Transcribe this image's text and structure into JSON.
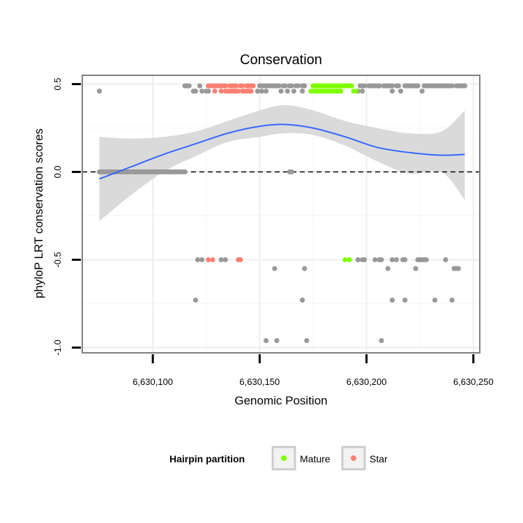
{
  "chart_data": {
    "type": "scatter",
    "title": "Conservation",
    "xlabel": "Genomic Position",
    "ylabel": "phyloP LRT conservation scores",
    "xlim": [
      6630067,
      6630253
    ],
    "ylim": [
      -1.03,
      0.55
    ],
    "x_ticks": [
      {
        "value": 6630100,
        "label": "6,630,100"
      },
      {
        "value": 6630150,
        "label": "6,630,150"
      },
      {
        "value": 6630200,
        "label": "6,630,200"
      },
      {
        "value": 6630250,
        "label": "6,630,250"
      }
    ],
    "y_ticks": [
      {
        "value": 0.5,
        "label": "0.5"
      },
      {
        "value": 0.0,
        "label": "0.0"
      },
      {
        "value": -0.5,
        "label": "-0.5"
      },
      {
        "value": -1.0,
        "label": "-1.0"
      }
    ],
    "grid": true,
    "reference_line": {
      "y": 0.0,
      "style": "dashed"
    },
    "colors": {
      "other": "#999999",
      "mature": "#7fff00",
      "star": "#fa8072",
      "smooth": "#3366ff",
      "ribbon": "#d3d3d3",
      "panel_border": "#7f7f7f"
    },
    "smooth_line": {
      "x": [
        6630075,
        6630090,
        6630105,
        6630120,
        6630135,
        6630150,
        6630162,
        6630175,
        6630190,
        6630205,
        6630220,
        6630235,
        6630246
      ],
      "y": [
        -0.04,
        0.03,
        0.1,
        0.16,
        0.22,
        0.26,
        0.27,
        0.25,
        0.2,
        0.14,
        0.11,
        0.095,
        0.1
      ],
      "lower": [
        -0.28,
        -0.13,
        0.0,
        0.09,
        0.17,
        0.2,
        0.22,
        0.21,
        0.15,
        0.06,
        -0.01,
        0.0,
        -0.16
      ],
      "upper": [
        0.2,
        0.19,
        0.2,
        0.23,
        0.29,
        0.35,
        0.38,
        0.35,
        0.29,
        0.25,
        0.22,
        0.23,
        0.35
      ]
    },
    "series": [
      {
        "name": "Other",
        "points": [
          [
            6630075,
            0.46
          ],
          [
            6630075,
            0.0
          ],
          [
            6630076,
            0.0
          ],
          [
            6630077,
            0.0
          ],
          [
            6630078,
            0.0
          ],
          [
            6630079,
            0.0
          ],
          [
            6630080,
            0.0
          ],
          [
            6630081,
            0.0
          ],
          [
            6630082,
            0.0
          ],
          [
            6630083,
            0.0
          ],
          [
            6630084,
            0.0
          ],
          [
            6630085,
            0.0
          ],
          [
            6630086,
            0.0
          ],
          [
            6630087,
            0.0
          ],
          [
            6630088,
            0.0
          ],
          [
            6630089,
            0.0
          ],
          [
            6630090,
            0.0
          ],
          [
            6630091,
            0.0
          ],
          [
            6630092,
            0.0
          ],
          [
            6630093,
            0.0
          ],
          [
            6630094,
            0.0
          ],
          [
            6630095,
            0.0
          ],
          [
            6630096,
            0.0
          ],
          [
            6630097,
            0.0
          ],
          [
            6630098,
            0.0
          ],
          [
            6630099,
            0.0
          ],
          [
            6630100,
            0.0
          ],
          [
            6630101,
            0.0
          ],
          [
            6630102,
            0.0
          ],
          [
            6630103,
            0.0
          ],
          [
            6630104,
            0.0
          ],
          [
            6630105,
            0.0
          ],
          [
            6630106,
            0.0
          ],
          [
            6630107,
            0.0
          ],
          [
            6630108,
            0.0
          ],
          [
            6630109,
            0.0
          ],
          [
            6630110,
            0.0
          ],
          [
            6630111,
            0.0
          ],
          [
            6630112,
            0.0
          ],
          [
            6630113,
            0.0
          ],
          [
            6630114,
            0.0
          ],
          [
            6630115,
            0.0
          ],
          [
            6630164,
            0.0
          ],
          [
            6630165,
            0.0
          ],
          [
            6630115,
            0.49
          ],
          [
            6630116,
            0.49
          ],
          [
            6630117,
            0.49
          ],
          [
            6630119,
            0.46
          ],
          [
            6630120,
            0.46
          ],
          [
            6630122,
            0.49
          ],
          [
            6630123,
            0.46
          ],
          [
            6630125,
            0.46
          ],
          [
            6630126,
            0.46
          ],
          [
            6630150,
            0.49
          ],
          [
            6630151,
            0.49
          ],
          [
            6630152,
            0.49
          ],
          [
            6630153,
            0.49
          ],
          [
            6630154,
            0.49
          ],
          [
            6630155,
            0.49
          ],
          [
            6630156,
            0.49
          ],
          [
            6630157,
            0.49
          ],
          [
            6630158,
            0.49
          ],
          [
            6630159,
            0.49
          ],
          [
            6630161,
            0.49
          ],
          [
            6630162,
            0.49
          ],
          [
            6630164,
            0.49
          ],
          [
            6630165,
            0.49
          ],
          [
            6630167,
            0.49
          ],
          [
            6630168,
            0.49
          ],
          [
            6630170,
            0.49
          ],
          [
            6630171,
            0.49
          ],
          [
            6630149,
            0.46
          ],
          [
            6630151,
            0.46
          ],
          [
            6630153,
            0.46
          ],
          [
            6630160,
            0.46
          ],
          [
            6630163,
            0.46
          ],
          [
            6630166,
            0.46
          ],
          [
            6630170,
            0.46
          ],
          [
            6630197,
            0.49
          ],
          [
            6630198,
            0.49
          ],
          [
            6630199,
            0.49
          ],
          [
            6630201,
            0.49
          ],
          [
            6630202,
            0.49
          ],
          [
            6630203,
            0.49
          ],
          [
            6630204,
            0.49
          ],
          [
            6630205,
            0.49
          ],
          [
            6630206,
            0.49
          ],
          [
            6630208,
            0.49
          ],
          [
            6630209,
            0.49
          ],
          [
            6630210,
            0.49
          ],
          [
            6630211,
            0.49
          ],
          [
            6630212,
            0.49
          ],
          [
            6630214,
            0.49
          ],
          [
            6630215,
            0.49
          ],
          [
            6630218,
            0.49
          ],
          [
            6630219,
            0.49
          ],
          [
            6630220,
            0.49
          ],
          [
            6630221,
            0.49
          ],
          [
            6630222,
            0.49
          ],
          [
            6630223,
            0.49
          ],
          [
            6630224,
            0.49
          ],
          [
            6630227,
            0.49
          ],
          [
            6630228,
            0.49
          ],
          [
            6630229,
            0.49
          ],
          [
            6630230,
            0.49
          ],
          [
            6630231,
            0.49
          ],
          [
            6630232,
            0.49
          ],
          [
            6630233,
            0.49
          ],
          [
            6630234,
            0.49
          ],
          [
            6630235,
            0.49
          ],
          [
            6630236,
            0.49
          ],
          [
            6630237,
            0.49
          ],
          [
            6630238,
            0.49
          ],
          [
            6630239,
            0.49
          ],
          [
            6630240,
            0.49
          ],
          [
            6630242,
            0.49
          ],
          [
            6630243,
            0.49
          ],
          [
            6630244,
            0.49
          ],
          [
            6630245,
            0.49
          ],
          [
            6630246,
            0.49
          ],
          [
            6630196,
            0.46
          ],
          [
            6630198,
            0.46
          ],
          [
            6630212,
            0.46
          ],
          [
            6630216,
            0.46
          ],
          [
            6630226,
            0.46
          ],
          [
            6630121,
            -0.5
          ],
          [
            6630123,
            -0.5
          ],
          [
            6630132,
            -0.5
          ],
          [
            6630134,
            -0.5
          ],
          [
            6630196,
            -0.5
          ],
          [
            6630198,
            -0.5
          ],
          [
            6630199,
            -0.5
          ],
          [
            6630204,
            -0.5
          ],
          [
            6630206,
            -0.5
          ],
          [
            6630207,
            -0.5
          ],
          [
            6630212,
            -0.5
          ],
          [
            6630214,
            -0.5
          ],
          [
            6630217,
            -0.5
          ],
          [
            6630218,
            -0.5
          ],
          [
            6630224,
            -0.5
          ],
          [
            6630225,
            -0.5
          ],
          [
            6630226,
            -0.5
          ],
          [
            6630227,
            -0.5
          ],
          [
            6630228,
            -0.5
          ],
          [
            6630237,
            -0.5
          ],
          [
            6630157,
            -0.55
          ],
          [
            6630171,
            -0.55
          ],
          [
            6630210,
            -0.55
          ],
          [
            6630223,
            -0.55
          ],
          [
            6630241,
            -0.55
          ],
          [
            6630242,
            -0.55
          ],
          [
            6630243,
            -0.55
          ],
          [
            6630120,
            -0.73
          ],
          [
            6630170,
            -0.73
          ],
          [
            6630212,
            -0.73
          ],
          [
            6630218,
            -0.73
          ],
          [
            6630232,
            -0.73
          ],
          [
            6630240,
            -0.73
          ],
          [
            6630153,
            -0.96
          ],
          [
            6630158,
            -0.96
          ],
          [
            6630172,
            -0.96
          ],
          [
            6630207,
            -0.96
          ]
        ]
      },
      {
        "name": "Mature",
        "points": [
          [
            6630175,
            0.49
          ],
          [
            6630176,
            0.49
          ],
          [
            6630177,
            0.49
          ],
          [
            6630178,
            0.49
          ],
          [
            6630179,
            0.49
          ],
          [
            6630180,
            0.49
          ],
          [
            6630181,
            0.49
          ],
          [
            6630182,
            0.49
          ],
          [
            6630183,
            0.49
          ],
          [
            6630184,
            0.49
          ],
          [
            6630185,
            0.49
          ],
          [
            6630186,
            0.49
          ],
          [
            6630187,
            0.49
          ],
          [
            6630188,
            0.49
          ],
          [
            6630189,
            0.49
          ],
          [
            6630190,
            0.49
          ],
          [
            6630191,
            0.49
          ],
          [
            6630192,
            0.49
          ],
          [
            6630193,
            0.49
          ],
          [
            6630174,
            0.46
          ],
          [
            6630175,
            0.46
          ],
          [
            6630176,
            0.46
          ],
          [
            6630177,
            0.46
          ],
          [
            6630178,
            0.46
          ],
          [
            6630179,
            0.46
          ],
          [
            6630180,
            0.46
          ],
          [
            6630181,
            0.46
          ],
          [
            6630182,
            0.46
          ],
          [
            6630183,
            0.46
          ],
          [
            6630184,
            0.46
          ],
          [
            6630185,
            0.46
          ],
          [
            6630186,
            0.46
          ],
          [
            6630187,
            0.46
          ],
          [
            6630188,
            0.46
          ],
          [
            6630194,
            0.46
          ],
          [
            6630195,
            0.46
          ],
          [
            6630190,
            -0.5
          ],
          [
            6630192,
            -0.5
          ]
        ]
      },
      {
        "name": "Star",
        "points": [
          [
            6630126,
            0.49
          ],
          [
            6630127,
            0.49
          ],
          [
            6630128,
            0.49
          ],
          [
            6630129,
            0.49
          ],
          [
            6630130,
            0.49
          ],
          [
            6630131,
            0.49
          ],
          [
            6630132,
            0.49
          ],
          [
            6630133,
            0.49
          ],
          [
            6630134,
            0.49
          ],
          [
            6630136,
            0.49
          ],
          [
            6630137,
            0.49
          ],
          [
            6630138,
            0.49
          ],
          [
            6630139,
            0.49
          ],
          [
            6630141,
            0.49
          ],
          [
            6630142,
            0.49
          ],
          [
            6630144,
            0.49
          ],
          [
            6630145,
            0.49
          ],
          [
            6630146,
            0.49
          ],
          [
            6630147,
            0.49
          ],
          [
            6630129,
            0.46
          ],
          [
            6630132,
            0.46
          ],
          [
            6630134,
            0.46
          ],
          [
            6630135,
            0.46
          ],
          [
            6630136,
            0.46
          ],
          [
            6630137,
            0.46
          ],
          [
            6630138,
            0.46
          ],
          [
            6630139,
            0.46
          ],
          [
            6630140,
            0.46
          ],
          [
            6630142,
            0.46
          ],
          [
            6630143,
            0.46
          ],
          [
            6630144,
            0.46
          ],
          [
            6630145,
            0.46
          ],
          [
            6630146,
            0.46
          ],
          [
            6630126,
            -0.5
          ],
          [
            6630128,
            -0.5
          ],
          [
            6630140,
            -0.5
          ],
          [
            6630141,
            -0.5
          ]
        ]
      }
    ],
    "legend": {
      "title": "Hairpin partition",
      "position": "bottom",
      "entries": [
        {
          "label": "Mature",
          "series": "Mature"
        },
        {
          "label": "Star",
          "series": "Star"
        }
      ]
    }
  }
}
